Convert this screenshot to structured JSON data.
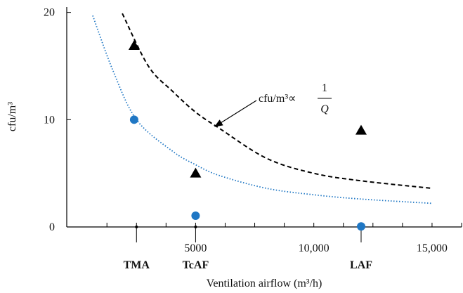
{
  "chart_data": {
    "type": "scatter-curves",
    "y_label": "cfu/m³",
    "x_label": "Ventilation airflow (m³/h)",
    "xlim": [
      -450,
      16250
    ],
    "ylim": [
      0,
      20.5
    ],
    "xticks": [
      {
        "value": 5000,
        "label": "5000"
      },
      {
        "value": 10000,
        "label": "10,000"
      },
      {
        "value": 15000,
        "label": "15,000"
      }
    ],
    "xminor_ticks": [
      1250,
      2500,
      3750,
      6250,
      7500,
      8750,
      11250,
      12500,
      13750,
      16250
    ],
    "yticks": [
      0,
      10,
      20
    ],
    "x_categories": [
      {
        "label": "TMA",
        "x": 2500
      },
      {
        "label": "TcAF",
        "x": 5000
      },
      {
        "label": "LAF",
        "x": 12000
      }
    ],
    "annotation": {
      "text": "cfu/m³∝",
      "numerator": "1",
      "denominator": "Q"
    },
    "series": [
      {
        "kind": "points",
        "marker": "triangle",
        "color": "#000000",
        "x": [
          2400,
          5000,
          12000
        ],
        "values": [
          16.9,
          5.0,
          9.0
        ]
      },
      {
        "kind": "points",
        "marker": "circle",
        "color": "#1f77c4",
        "x": [
          2400,
          5000,
          12000
        ],
        "values": [
          10.0,
          1.05,
          0.05
        ]
      },
      {
        "kind": "line",
        "dash": "dashed",
        "color": "#000000",
        "x": [
          1900,
          3000,
          4000,
          5000,
          6000,
          8000,
          10000,
          12000,
          15000
        ],
        "values": [
          19.9,
          15.0,
          12.7,
          10.7,
          9.2,
          6.4,
          5.0,
          4.3,
          3.6
        ]
      },
      {
        "kind": "line",
        "dash": "dotted",
        "color": "#1f77c4",
        "x": [
          650,
          1500,
          2500,
          4000,
          5000,
          6000,
          8000,
          10000,
          12000,
          15000
        ],
        "values": [
          19.7,
          14.6,
          10.0,
          7.1,
          5.8,
          4.8,
          3.6,
          3.0,
          2.6,
          2.2
        ]
      }
    ]
  }
}
